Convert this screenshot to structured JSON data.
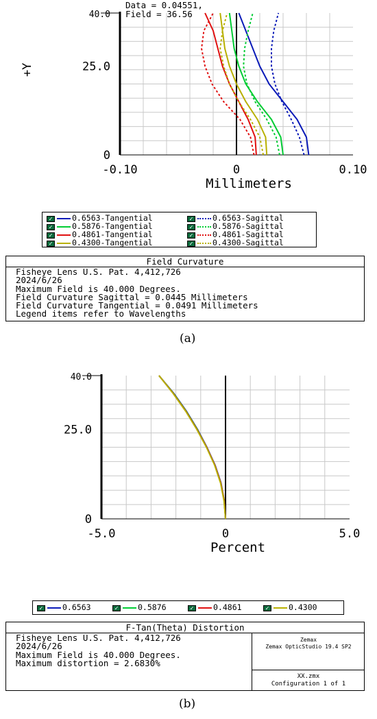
{
  "figure_a": {
    "readout": {
      "data_line": "Data = 0.04551,",
      "field_line": "Field = 36.56"
    },
    "legend": [
      {
        "label": "0.6563-Tangential",
        "color": "#0a1ab8",
        "style": "solid"
      },
      {
        "label": "0.6563-Sagittal",
        "color": "#0a1ab8",
        "style": "dotted"
      },
      {
        "label": "0.5876-Tangential",
        "color": "#00cc33",
        "style": "solid"
      },
      {
        "label": "0.5876-Sagittal",
        "color": "#00cc33",
        "style": "dotted"
      },
      {
        "label": "0.4861-Tangential",
        "color": "#e01010",
        "style": "solid"
      },
      {
        "label": "0.4861-Sagittal",
        "color": "#e01010",
        "style": "dotted"
      },
      {
        "label": "0.4300-Tangential",
        "color": "#b8b000",
        "style": "solid"
      },
      {
        "label": "0.4300-Sagittal",
        "color": "#b8b000",
        "style": "dotted"
      }
    ],
    "info_title": "Field Curvature",
    "info_lines": [
      "Fisheye Lens U.S. Pat. 4,412,726",
      "2024/6/26",
      "Maximum Field is 40.000 Degrees.",
      "Field Curvature Sagittal = 0.0445 Millimeters",
      "Field Curvature Tangential = 0.0491 Millimeters",
      "Legend items refer to Wavelengths"
    ],
    "caption": "(a)"
  },
  "figure_b": {
    "legend": [
      {
        "label": "0.6563",
        "color": "#0a1ab8"
      },
      {
        "label": "0.5876",
        "color": "#00cc33"
      },
      {
        "label": "0.4861",
        "color": "#e01010"
      },
      {
        "label": "0.4300",
        "color": "#b8b000"
      }
    ],
    "info_title": "F-Tan(Theta) Distortion",
    "info_lines": [
      "Fisheye Lens U.S. Pat. 4,412,726",
      "2024/6/26",
      "Maximum Field is 40.000 Degrees.",
      "Maximum distortion = 2.6830%"
    ],
    "side_top": [
      "Zemax",
      "Zemax OpticStudio 19.4 SP2"
    ],
    "side_bottom": [
      "XX.zmx",
      "Configuration 1 of 1"
    ],
    "caption": "(b)"
  },
  "chart_data": [
    {
      "type": "line",
      "xlabel": "Millimeters",
      "ylabel": "+Y",
      "xlim": [
        -0.1,
        0.1
      ],
      "ylim": [
        0,
        40
      ],
      "x_tick_labels": [
        "-0.10",
        "0",
        "0.10"
      ],
      "y_tick_labels": [
        "0",
        "25.0",
        "40.0"
      ],
      "grid": true,
      "y": [
        0,
        5,
        10,
        15,
        20,
        25,
        30,
        35,
        40
      ],
      "series": [
        {
          "name": "0.6563-Tangential",
          "color": "#0a1ab8",
          "dash": "solid",
          "x": [
            0.062,
            0.06,
            0.052,
            0.04,
            0.028,
            0.02,
            0.014,
            0.008,
            0.002
          ]
        },
        {
          "name": "0.6563-Sagittal",
          "color": "#0a1ab8",
          "dash": "dotted",
          "x": [
            0.058,
            0.054,
            0.047,
            0.039,
            0.033,
            0.03,
            0.03,
            0.032,
            0.036
          ]
        },
        {
          "name": "0.5876-Tangential",
          "color": "#00cc33",
          "dash": "solid",
          "x": [
            0.04,
            0.038,
            0.03,
            0.018,
            0.008,
            0.002,
            -0.002,
            -0.004,
            -0.006
          ]
        },
        {
          "name": "0.5876-Sagittal",
          "color": "#00cc33",
          "dash": "dotted",
          "x": [
            0.037,
            0.034,
            0.026,
            0.016,
            0.009,
            0.006,
            0.007,
            0.01,
            0.014
          ]
        },
        {
          "name": "0.4861-Tangential",
          "color": "#e01010",
          "dash": "solid",
          "x": [
            0.017,
            0.016,
            0.01,
            0.002,
            -0.006,
            -0.012,
            -0.016,
            -0.02,
            -0.027
          ]
        },
        {
          "name": "0.4861-Sagittal",
          "color": "#e01010",
          "dash": "dotted",
          "x": [
            0.015,
            0.012,
            0.003,
            -0.011,
            -0.021,
            -0.027,
            -0.03,
            -0.028,
            -0.02
          ]
        },
        {
          "name": "0.4300-Tangential",
          "color": "#b8b000",
          "dash": "solid",
          "x": [
            0.026,
            0.025,
            0.018,
            0.008,
            0.0,
            -0.006,
            -0.01,
            -0.012,
            -0.014
          ]
        },
        {
          "name": "0.4300-Sagittal",
          "color": "#b8b000",
          "dash": "dotted",
          "x": [
            0.023,
            0.02,
            0.012,
            0.002,
            -0.006,
            -0.011,
            -0.014,
            -0.012,
            -0.008
          ]
        }
      ]
    },
    {
      "type": "line",
      "xlabel": "Percent",
      "ylabel": "",
      "xlim": [
        -5,
        5
      ],
      "ylim": [
        0,
        40
      ],
      "x_tick_labels": [
        "-5.0",
        "0",
        "5.0"
      ],
      "y_tick_labels": [
        "0",
        "25.0",
        "40.0"
      ],
      "grid": true,
      "y": [
        0,
        5,
        10,
        15,
        20,
        25,
        30,
        35,
        40
      ],
      "series": [
        {
          "name": "0.6563",
          "color": "#0a1ab8",
          "x": [
            0.0,
            -0.05,
            -0.18,
            -0.42,
            -0.75,
            -1.13,
            -1.57,
            -2.08,
            -2.68
          ]
        },
        {
          "name": "0.5876",
          "color": "#00cc33",
          "x": [
            0.0,
            -0.05,
            -0.19,
            -0.43,
            -0.76,
            -1.14,
            -1.58,
            -2.09,
            -2.68
          ]
        },
        {
          "name": "0.4861",
          "color": "#e01010",
          "x": [
            0.0,
            -0.05,
            -0.19,
            -0.43,
            -0.76,
            -1.15,
            -1.59,
            -2.1,
            -2.68
          ]
        },
        {
          "name": "0.4300",
          "color": "#b8b000",
          "x": [
            0.0,
            -0.06,
            -0.2,
            -0.44,
            -0.77,
            -1.16,
            -1.6,
            -2.11,
            -2.68
          ]
        }
      ]
    }
  ]
}
